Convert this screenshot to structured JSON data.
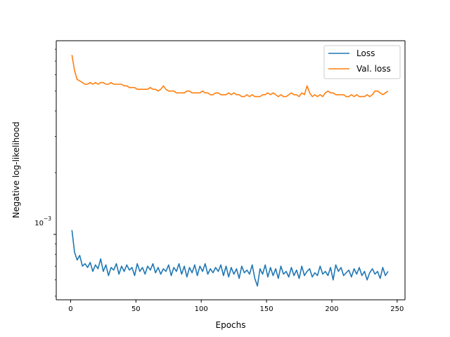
{
  "chart_data": {
    "type": "line",
    "title": "",
    "xlabel": "Epochs",
    "ylabel": "Negative log-likelihood",
    "xlim": [
      -11,
      256
    ],
    "ylim": [
      0.00048,
      0.0088
    ],
    "yscale": "log",
    "grid": false,
    "legend_position": "top-right",
    "x_ticks": [
      0,
      50,
      100,
      150,
      200,
      250
    ],
    "x_tick_labels": [
      "0",
      "50",
      "100",
      "150",
      "200",
      "250"
    ],
    "y_ticks": [
      0.001
    ],
    "y_tick_labels": {
      "base": "10",
      "exponent": "−3"
    },
    "series": [
      {
        "name": "Loss",
        "color": "#1f77b4",
        "x": [
          1,
          3,
          5,
          7,
          9,
          11,
          13,
          15,
          17,
          19,
          21,
          23,
          25,
          27,
          29,
          31,
          33,
          35,
          37,
          39,
          41,
          43,
          45,
          47,
          49,
          51,
          53,
          55,
          57,
          59,
          61,
          63,
          65,
          67,
          69,
          71,
          73,
          75,
          77,
          79,
          81,
          83,
          85,
          87,
          89,
          91,
          93,
          95,
          97,
          99,
          101,
          103,
          105,
          107,
          109,
          111,
          113,
          115,
          117,
          119,
          121,
          123,
          125,
          127,
          129,
          131,
          133,
          135,
          137,
          139,
          141,
          143,
          145,
          147,
          149,
          151,
          153,
          155,
          157,
          159,
          161,
          163,
          165,
          167,
          169,
          171,
          173,
          175,
          177,
          179,
          181,
          183,
          185,
          187,
          189,
          191,
          193,
          195,
          197,
          199,
          201,
          203,
          205,
          207,
          209,
          211,
          213,
          215,
          217,
          219,
          221,
          223,
          225,
          227,
          229,
          231,
          233,
          235,
          237,
          239,
          241,
          243
        ],
        "values": [
          0.00105,
          0.00082,
          0.00075,
          0.00079,
          0.0007,
          0.00072,
          0.00069,
          0.00073,
          0.00066,
          0.00071,
          0.00068,
          0.00076,
          0.00066,
          0.00071,
          0.00063,
          0.00069,
          0.00067,
          0.00072,
          0.00064,
          0.0007,
          0.00066,
          0.00071,
          0.00067,
          0.00069,
          0.00063,
          0.00072,
          0.00066,
          0.00069,
          0.00064,
          0.0007,
          0.00067,
          0.00072,
          0.00065,
          0.00069,
          0.00064,
          0.00068,
          0.00066,
          0.00071,
          0.00063,
          0.00069,
          0.00066,
          0.00072,
          0.00064,
          0.0007,
          0.00062,
          0.00069,
          0.00065,
          0.00071,
          0.00063,
          0.0007,
          0.00066,
          0.00072,
          0.00064,
          0.00068,
          0.00065,
          0.00069,
          0.00066,
          0.00071,
          0.00063,
          0.0007,
          0.00062,
          0.00069,
          0.00064,
          0.00068,
          0.00061,
          0.0007,
          0.00065,
          0.00067,
          0.00064,
          0.00071,
          0.00061,
          0.00056,
          0.00068,
          0.00064,
          0.00071,
          0.00062,
          0.00069,
          0.00063,
          0.00068,
          0.00061,
          0.0007,
          0.00064,
          0.00066,
          0.00062,
          0.00069,
          0.00063,
          0.00067,
          0.00061,
          0.0007,
          0.00063,
          0.00066,
          0.00068,
          0.00062,
          0.00065,
          0.00063,
          0.0007,
          0.00064,
          0.00066,
          0.00063,
          0.00069,
          0.0006,
          0.00071,
          0.00066,
          0.00069,
          0.00063,
          0.00065,
          0.00067,
          0.00062,
          0.00068,
          0.00064,
          0.00069,
          0.00063,
          0.00066,
          0.0006,
          0.00065,
          0.00068,
          0.00064,
          0.00066,
          0.00061,
          0.00069,
          0.00063,
          0.00066
        ]
      },
      {
        "name": "Val. loss",
        "color": "#ff7f0e",
        "x": [
          1,
          3,
          5,
          7,
          9,
          11,
          13,
          15,
          17,
          19,
          21,
          23,
          25,
          27,
          29,
          31,
          33,
          35,
          37,
          39,
          41,
          43,
          45,
          47,
          49,
          51,
          53,
          55,
          57,
          59,
          61,
          63,
          65,
          67,
          69,
          71,
          73,
          75,
          77,
          79,
          81,
          83,
          85,
          87,
          89,
          91,
          93,
          95,
          97,
          99,
          101,
          103,
          105,
          107,
          109,
          111,
          113,
          115,
          117,
          119,
          121,
          123,
          125,
          127,
          129,
          131,
          133,
          135,
          137,
          139,
          141,
          143,
          145,
          147,
          149,
          151,
          153,
          155,
          157,
          159,
          161,
          163,
          165,
          167,
          169,
          171,
          173,
          175,
          177,
          179,
          181,
          183,
          185,
          187,
          189,
          191,
          193,
          195,
          197,
          199,
          201,
          203,
          205,
          207,
          209,
          211,
          213,
          215,
          217,
          219,
          221,
          223,
          225,
          227,
          229,
          231,
          233,
          235,
          237,
          239,
          241,
          243
        ],
        "values": [
          0.0075,
          0.0063,
          0.0057,
          0.0056,
          0.0055,
          0.0054,
          0.0054,
          0.0055,
          0.0054,
          0.0055,
          0.0054,
          0.0055,
          0.0055,
          0.0054,
          0.0054,
          0.0055,
          0.0054,
          0.0054,
          0.0054,
          0.0054,
          0.0053,
          0.0053,
          0.0052,
          0.0052,
          0.0052,
          0.0051,
          0.0051,
          0.0051,
          0.0051,
          0.0051,
          0.0052,
          0.0051,
          0.0051,
          0.005,
          0.0051,
          0.0053,
          0.0051,
          0.005,
          0.005,
          0.005,
          0.0049,
          0.0049,
          0.0049,
          0.0049,
          0.005,
          0.005,
          0.0049,
          0.0049,
          0.0049,
          0.0049,
          0.005,
          0.0049,
          0.0049,
          0.0048,
          0.0048,
          0.0049,
          0.0049,
          0.0048,
          0.0048,
          0.0048,
          0.0049,
          0.0048,
          0.0049,
          0.0048,
          0.0048,
          0.0047,
          0.0047,
          0.0048,
          0.0047,
          0.0048,
          0.0047,
          0.0047,
          0.0047,
          0.0048,
          0.0048,
          0.0049,
          0.0048,
          0.0049,
          0.0048,
          0.0047,
          0.0048,
          0.0047,
          0.0047,
          0.0048,
          0.0049,
          0.0048,
          0.0048,
          0.0047,
          0.0049,
          0.0048,
          0.0053,
          0.0049,
          0.0047,
          0.0048,
          0.0047,
          0.0048,
          0.0047,
          0.0049,
          0.005,
          0.0049,
          0.0049,
          0.0048,
          0.0048,
          0.0048,
          0.0048,
          0.0047,
          0.0047,
          0.0048,
          0.0047,
          0.0048,
          0.0047,
          0.0047,
          0.0047,
          0.0048,
          0.0047,
          0.0048,
          0.005,
          0.005,
          0.0049,
          0.0048,
          0.0049,
          0.005
        ]
      }
    ]
  }
}
